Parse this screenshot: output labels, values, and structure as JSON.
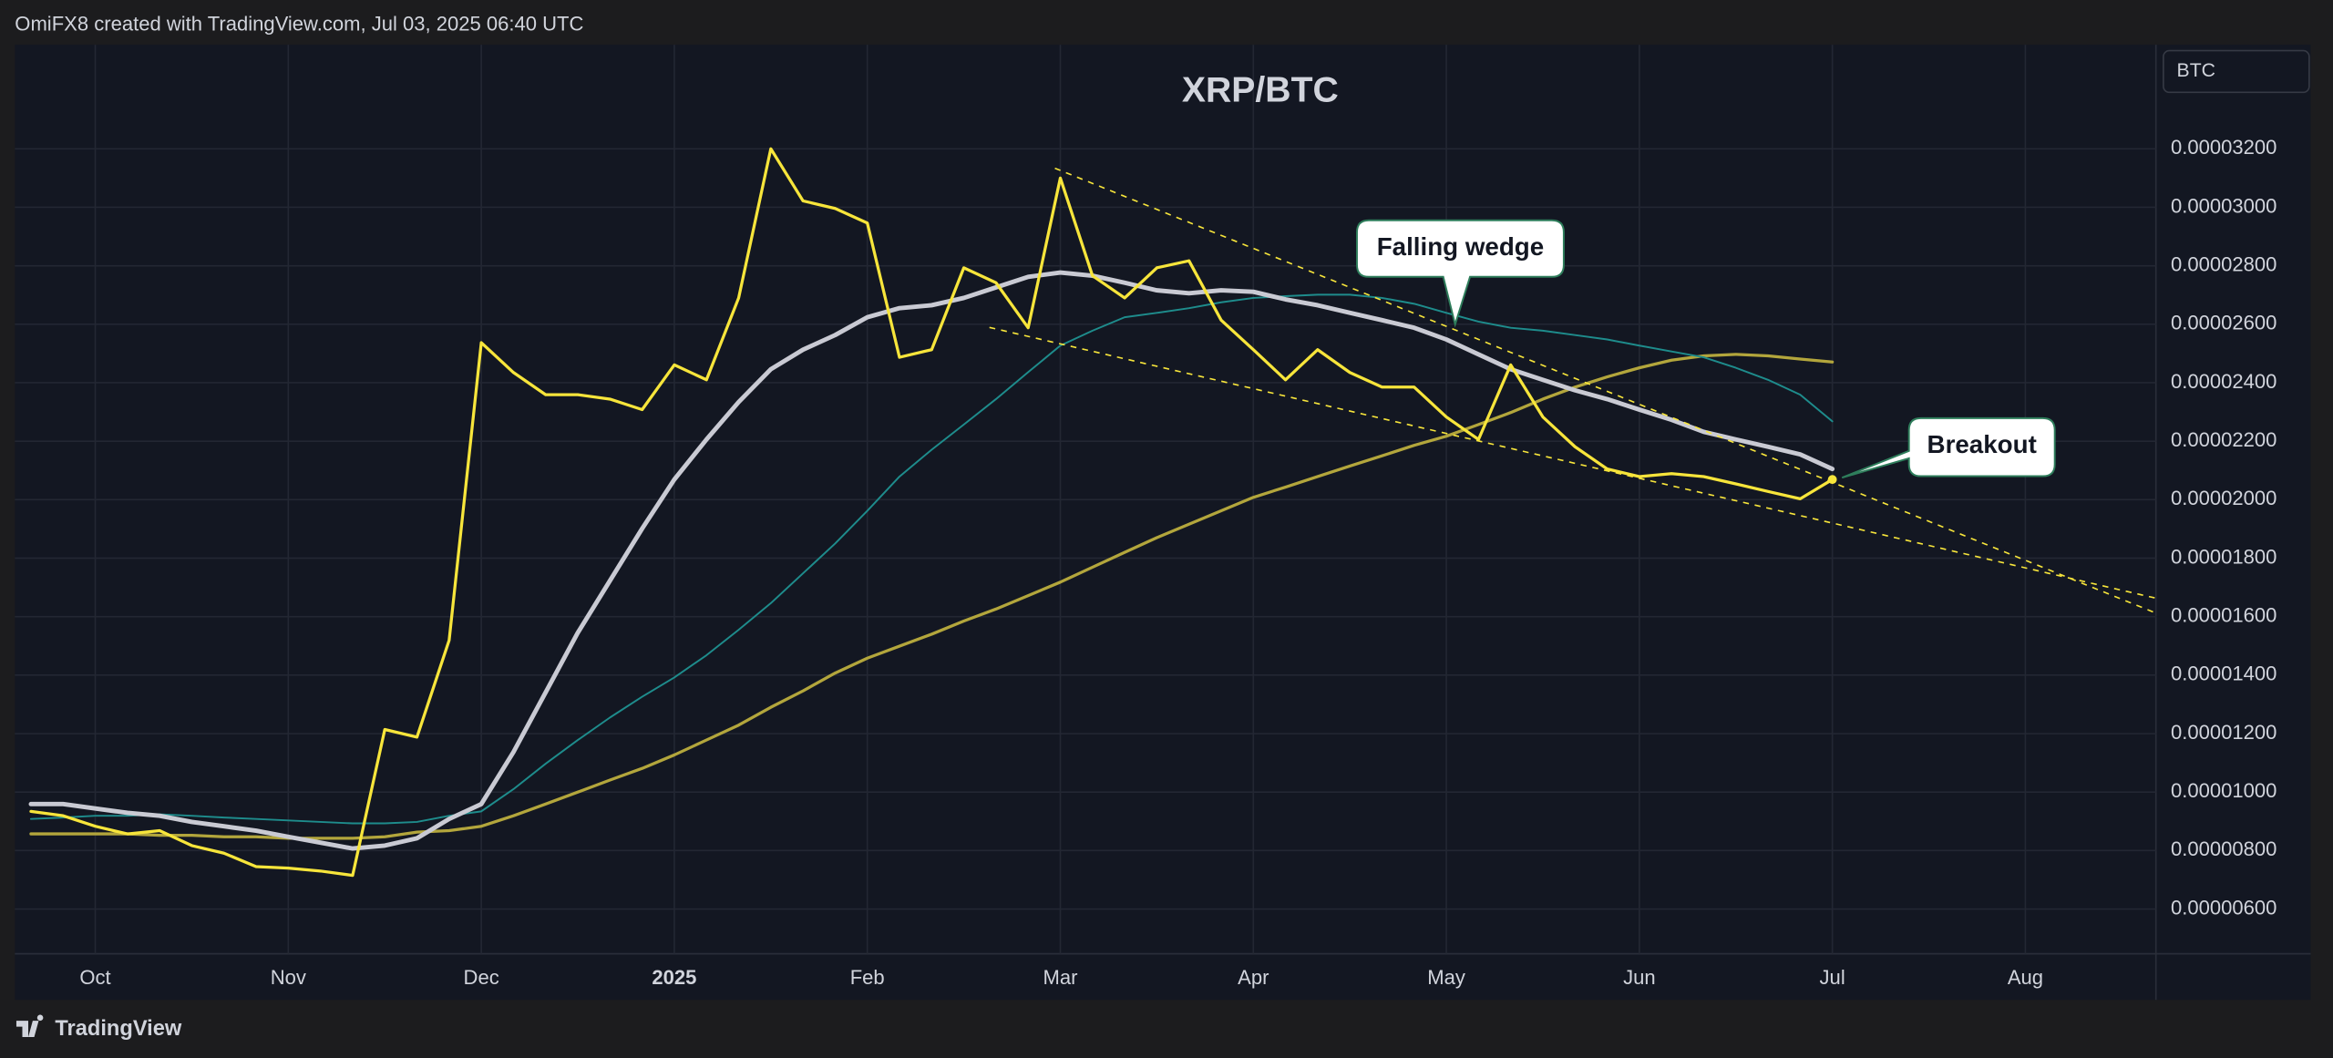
{
  "header": "OmiFX8 created with TradingView.com, Jul 03, 2025 06:40 UTC",
  "footer": "TradingView",
  "chart_data": {
    "type": "line",
    "title": "XRP/BTC",
    "currency": "BTC",
    "annotations": [
      "Falling wedge",
      "Breakout"
    ],
    "categories": [
      null,
      null,
      "Oct",
      null,
      null,
      null,
      null,
      null,
      "Nov",
      null,
      null,
      null,
      null,
      null,
      "Dec",
      null,
      null,
      null,
      null,
      null,
      "2025",
      null,
      null,
      null,
      null,
      null,
      "Feb",
      null,
      null,
      null,
      null,
      null,
      "Mar",
      null,
      null,
      null,
      null,
      null,
      "Apr",
      null,
      null,
      null,
      null,
      null,
      "May",
      null,
      null,
      null,
      null,
      null,
      "Jun",
      null,
      null,
      null,
      null,
      null,
      "Jul",
      null,
      null,
      null,
      null,
      null,
      "Aug",
      null,
      null,
      null,
      null
    ],
    "series": [
      {
        "color": "#b3a63c",
        "width": 2,
        "values": [
          8.57e-06,
          8.57e-06,
          8.57e-06,
          8.57e-06,
          8.52e-06,
          8.52e-06,
          8.47e-06,
          8.47e-06,
          8.42e-06,
          8.42e-06,
          8.42e-06,
          8.47e-06,
          8.63e-06,
          8.68e-06,
          8.83e-06,
          9.19e-06,
          9.59e-06,
          1e-05,
          1.041e-05,
          1.081e-05,
          1.127e-05,
          1.178e-05,
          1.229e-05,
          1.29e-05,
          1.346e-05,
          1.407e-05,
          1.458e-05,
          1.499e-05,
          1.54e-05,
          1.585e-05,
          1.626e-05,
          1.672e-05,
          1.718e-05,
          1.769e-05,
          1.82e-05,
          1.87e-05,
          1.916e-05,
          1.962e-05,
          2.008e-05,
          2.043e-05,
          2.079e-05,
          2.115e-05,
          2.15e-05,
          2.186e-05,
          2.217e-05,
          2.257e-05,
          2.298e-05,
          2.344e-05,
          2.385e-05,
          2.42e-05,
          2.451e-05,
          2.477e-05,
          2.492e-05,
          2.497e-05,
          2.492e-05,
          2.481e-05,
          2.471e-05,
          null,
          null,
          null,
          null,
          null,
          null,
          null,
          null,
          null,
          null
        ]
      },
      {
        "color": "#1e8c8c",
        "width": 1.2,
        "values": [
          9.08e-06,
          9.13e-06,
          9.19e-06,
          9.19e-06,
          9.24e-06,
          9.19e-06,
          9.13e-06,
          9.08e-06,
          9.03e-06,
          8.98e-06,
          8.93e-06,
          8.93e-06,
          8.98e-06,
          9.19e-06,
          9.34e-06,
          1.01e-05,
          1.097e-05,
          1.178e-05,
          1.255e-05,
          1.326e-05,
          1.392e-05,
          1.468e-05,
          1.555e-05,
          1.646e-05,
          1.748e-05,
          1.85e-05,
          1.962e-05,
          2.079e-05,
          2.171e-05,
          2.257e-05,
          2.344e-05,
          2.436e-05,
          2.527e-05,
          2.578e-05,
          2.624e-05,
          2.639e-05,
          2.655e-05,
          2.675e-05,
          2.69e-05,
          2.696e-05,
          2.701e-05,
          2.701e-05,
          2.69e-05,
          2.67e-05,
          2.639e-05,
          2.609e-05,
          2.588e-05,
          2.578e-05,
          2.563e-05,
          2.548e-05,
          2.527e-05,
          2.507e-05,
          2.487e-05,
          2.451e-05,
          2.41e-05,
          2.359e-05,
          2.268e-05,
          null,
          null,
          null,
          null,
          null,
          null,
          null,
          null,
          null,
          null
        ]
      },
      {
        "color": "#c9cad3",
        "width": 3,
        "values": [
          9.59e-06,
          9.59e-06,
          9.44e-06,
          9.29e-06,
          9.19e-06,
          8.98e-06,
          8.83e-06,
          8.68e-06,
          8.47e-06,
          8.27e-06,
          8.07e-06,
          8.17e-06,
          8.42e-06,
          9.08e-06,
          9.59e-06,
          1.137e-05,
          1.341e-05,
          1.545e-05,
          1.723e-05,
          1.901e-05,
          2.069e-05,
          2.206e-05,
          2.334e-05,
          2.446e-05,
          2.513e-05,
          2.563e-05,
          2.624e-05,
          2.655e-05,
          2.665e-05,
          2.69e-05,
          2.726e-05,
          2.762e-05,
          2.777e-05,
          2.766e-05,
          2.742e-05,
          2.716e-05,
          2.706e-05,
          2.716e-05,
          2.711e-05,
          2.685e-05,
          2.665e-05,
          2.639e-05,
          2.614e-05,
          2.588e-05,
          2.548e-05,
          2.497e-05,
          2.446e-05,
          2.41e-05,
          2.374e-05,
          2.344e-05,
          2.308e-05,
          2.273e-05,
          2.232e-05,
          2.206e-05,
          2.181e-05,
          2.155e-05,
          2.105e-05,
          null,
          null,
          null,
          null,
          null,
          null,
          null,
          null,
          null,
          null
        ]
      },
      {
        "color": "#f7e53b",
        "width": 2,
        "values": [
          9.34e-06,
          9.19e-06,
          8.83e-06,
          8.57e-06,
          8.68e-06,
          8.17e-06,
          7.91e-06,
          7.45e-06,
          7.4e-06,
          7.3e-06,
          7.15e-06,
          1.214e-05,
          1.188e-05,
          1.519e-05,
          2.537e-05,
          2.435e-05,
          2.359e-05,
          2.359e-05,
          2.344e-05,
          2.308e-05,
          2.461e-05,
          2.41e-05,
          2.69e-05,
          3.2e-05,
          3.022e-05,
          2.996e-05,
          2.946e-05,
          2.487e-05,
          2.513e-05,
          2.793e-05,
          2.742e-05,
          2.588e-05,
          3.1e-05,
          2.766e-05,
          2.69e-05,
          2.793e-05,
          2.817e-05,
          2.614e-05,
          2.513e-05,
          2.41e-05,
          2.513e-05,
          2.435e-05,
          2.385e-05,
          2.385e-05,
          2.283e-05,
          2.206e-05,
          2.461e-05,
          2.283e-05,
          2.181e-05,
          2.105e-05,
          2.079e-05,
          2.089e-05,
          2.079e-05,
          2.054e-05,
          2.028e-05,
          2.003e-05,
          2.069e-05,
          null,
          null,
          null,
          null,
          null,
          null,
          null,
          null,
          null,
          null
        ]
      }
    ],
    "ylim": [
      4.47e-06,
      3.556e-05
    ],
    "yticks": [
      {
        "value": 6e-06,
        "label": "0.00000600"
      },
      {
        "value": 8e-06,
        "label": "0.00000800"
      },
      {
        "value": 1e-05,
        "label": "0.00001000"
      },
      {
        "value": 1.2e-05,
        "label": "0.00001200"
      },
      {
        "value": 1.4e-05,
        "label": "0.00001400"
      },
      {
        "value": 1.6e-05,
        "label": "0.00001600"
      },
      {
        "value": 1.8e-05,
        "label": "0.00001800"
      },
      {
        "value": 2e-05,
        "label": "0.00002000"
      },
      {
        "value": 2.2e-05,
        "label": "0.00002200"
      },
      {
        "value": 2.4e-05,
        "label": "0.00002400"
      },
      {
        "value": 2.6e-05,
        "label": "0.00002600"
      },
      {
        "value": 2.8e-05,
        "label": "0.00002800"
      },
      {
        "value": 3e-05,
        "label": "0.00003000"
      },
      {
        "value": 3.2e-05,
        "label": "0.00003200"
      }
    ],
    "grid": true,
    "title_color": "#f7931a"
  }
}
